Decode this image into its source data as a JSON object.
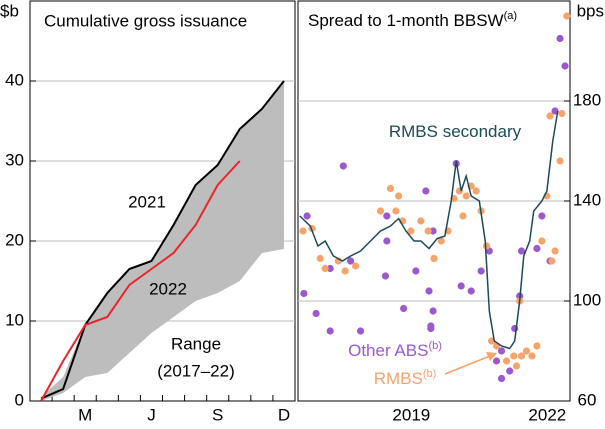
{
  "chart_data": [
    {
      "type": "line",
      "title": "Cumulative gross issuance",
      "y_label": "$b",
      "categories": [
        null,
        null,
        "M",
        null,
        null,
        "J",
        null,
        null,
        "S",
        null,
        null,
        "D"
      ],
      "ylim": [
        0,
        50
      ],
      "yticks": [
        0,
        10,
        20,
        30,
        40
      ],
      "grid": true,
      "band": {
        "label": [
          "Range",
          "(2017–22)"
        ],
        "color": "#bdbdbd",
        "upper": [
          0.5,
          3,
          9.5,
          13.5,
          16.5,
          17.5,
          22,
          27,
          29.5,
          34,
          36.5,
          40
        ],
        "lower": [
          0,
          1,
          3,
          3.5,
          6,
          8.5,
          10.5,
          12.5,
          13.5,
          15,
          18.5,
          19
        ]
      },
      "series": [
        {
          "name": "2021",
          "color": "#000000",
          "values": [
            0.3,
            1.5,
            9.5,
            13.5,
            16.5,
            17.5,
            22,
            27,
            29.5,
            34,
            36.5,
            40
          ]
        },
        {
          "name": "2022",
          "color": "#e8262b",
          "values": [
            0,
            5,
            9.5,
            10.5,
            14.5,
            16.5,
            18.5,
            22,
            27,
            30,
            null,
            null
          ]
        }
      ]
    },
    {
      "type": "scatter",
      "title": "Spread to 1-month BBSW",
      "title_note": "(a)",
      "y_label": "bps",
      "xlim": [
        2017,
        2023
      ],
      "xticks": [
        {
          "value": 2019.5,
          "label": "2019"
        },
        {
          "value": 2022.5,
          "label": "2022"
        }
      ],
      "ylim": [
        60,
        220
      ],
      "yticks": [
        60,
        100,
        140,
        180
      ],
      "grid": true,
      "y_axis_side": "right",
      "series": [
        {
          "name": "RMBS secondary",
          "type": "line",
          "color": "#1c4a5a",
          "x": [
            2017.04,
            2017.27,
            2017.44,
            2017.6,
            2017.78,
            2017.98,
            2018.16,
            2018.38,
            2018.6,
            2018.82,
            2019.04,
            2019.22,
            2019.38,
            2019.56,
            2019.71,
            2019.89,
            2020.07,
            2020.24,
            2020.38,
            2020.49,
            2020.6,
            2020.71,
            2020.82,
            2021.0,
            2021.13,
            2021.22,
            2021.33,
            2021.49,
            2021.67,
            2021.78,
            2021.89,
            2021.98,
            2022.11,
            2022.2,
            2022.38,
            2022.49,
            2022.62,
            2022.73
          ],
          "values": [
            134,
            130,
            122,
            124,
            118,
            116,
            118,
            120,
            124,
            128,
            130,
            133,
            128,
            124,
            124,
            121,
            125,
            126,
            140,
            156,
            144,
            150,
            142,
            140,
            124,
            96,
            84,
            82,
            81,
            84,
            100,
            118,
            124,
            136,
            140,
            144,
            164,
            176
          ]
        },
        {
          "name": "Other ABS",
          "note": "(b)",
          "type": "scatter",
          "color": "#9b59d0",
          "x": [
            2017.2,
            2017.4,
            2017.13,
            2018.0,
            2017.71,
            2017.71,
            2018.16,
            2018.38,
            2018.93,
            2018.96,
            2018.96,
            2019.33,
            2019.6,
            2019.82,
            2019.89,
            2019.93,
            2019.93,
            2019.98,
            2019.98,
            2020.49,
            2020.82,
            2021.04,
            2021.22,
            2021.38,
            2021.49,
            2021.49,
            2021.67,
            2021.78,
            2021.89,
            2021.93,
            2022.27,
            2022.38,
            2022.56,
            2022.67,
            2022.78,
            2022.89,
            2020.6
          ],
          "values": [
            134,
            95,
            103,
            154,
            113,
            88,
            116,
            88,
            110,
            134,
            124,
            97,
            112,
            144,
            104,
            90,
            89,
            128,
            96,
            155,
            104,
            112,
            120,
            76,
            69,
            80,
            72,
            89,
            102,
            120,
            121,
            134,
            116,
            176,
            205,
            194,
            106
          ]
        },
        {
          "name": "RMBS",
          "note": "(b)",
          "type": "scatter",
          "color": "#f7a36c",
          "x": [
            2017.11,
            2017.31,
            2017.49,
            2017.6,
            2017.89,
            2018.04,
            2018.27,
            2018.82,
            2019.04,
            2019.16,
            2019.22,
            2019.31,
            2019.49,
            2019.71,
            2019.87,
            2020.0,
            2020.16,
            2020.31,
            2020.44,
            2020.56,
            2020.64,
            2020.71,
            2020.82,
            2020.93,
            2021.04,
            2021.16,
            2021.27,
            2021.38,
            2021.6,
            2021.76,
            2021.82,
            2021.93,
            2022.04,
            2022.16,
            2022.27,
            2022.38,
            2022.49,
            2022.56,
            2022.6,
            2022.67,
            2022.78,
            2022.82,
            2022.93,
            2021.89
          ],
          "values": [
            128,
            129,
            117,
            113,
            116,
            112,
            114,
            136,
            145,
            136,
            142,
            132,
            128,
            132,
            128,
            117,
            124,
            128,
            141,
            144,
            134,
            142,
            146,
            144,
            136,
            122,
            84,
            82,
            76,
            78,
            74,
            78,
            80,
            78,
            82,
            124,
            142,
            174,
            116,
            120,
            156,
            175,
            214,
            100
          ]
        }
      ]
    }
  ]
}
